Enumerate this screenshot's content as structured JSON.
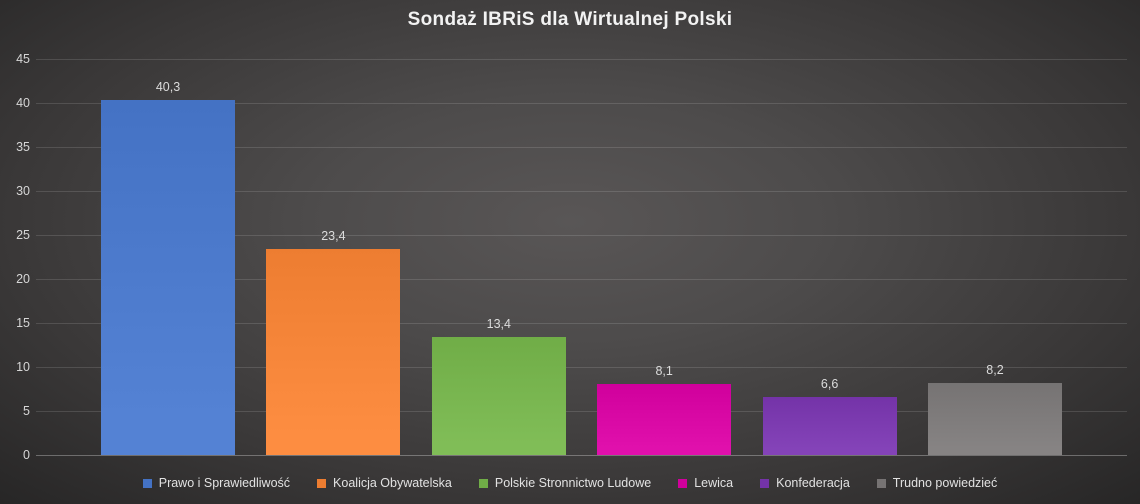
{
  "chart_data": {
    "type": "bar",
    "title": "Sondaż IBRiS dla Wirtualnej Polski",
    "categories": [
      "Prawo i Sprawiedliwość",
      "Koalicja Obywatelska",
      "Polskie Stronnictwo Ludowe",
      "Lewica",
      "Konfederacja",
      "Trudno powiedzieć"
    ],
    "values": [
      40.3,
      23.4,
      13.4,
      8.1,
      6.6,
      8.2
    ],
    "value_labels": [
      "40,3",
      "23,4",
      "13,4",
      "8,1",
      "6,6",
      "8,2"
    ],
    "colors": [
      "#4472C4",
      "#ED7D31",
      "#70AD47",
      "#D0009C",
      "#7433A8",
      "#767373"
    ],
    "xlabel": "",
    "ylabel": "",
    "ylim": [
      0,
      45
    ],
    "ytick_step": 5,
    "ytick_labels": [
      "0",
      "5",
      "10",
      "15",
      "20",
      "25",
      "30",
      "35",
      "40",
      "45"
    ],
    "grid": true,
    "legend_position": "bottom",
    "theme": {
      "background_center": "#595656",
      "background_edge": "#272626",
      "gridline_color": "rgba(255,255,255,0.13)",
      "baseline_color": "rgba(255,255,255,0.30)",
      "title_color": "#F2F2F2",
      "axis_label_color": "#D6D6D6",
      "value_label_color": "#DCDCDC",
      "legend_text_color": "#E2E2E2"
    }
  }
}
